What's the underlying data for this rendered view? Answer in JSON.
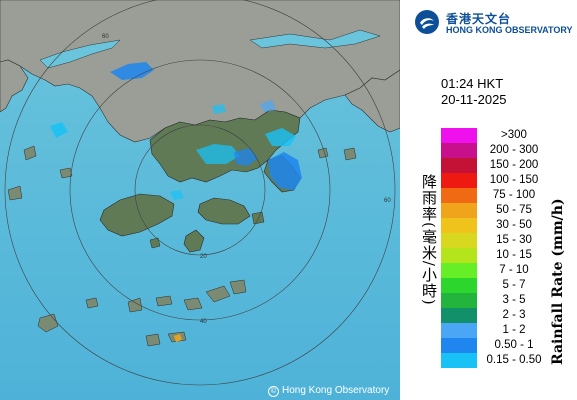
{
  "logo": {
    "name_cn": "香港天文台",
    "name_en": "HONG KONG OBSERVATORY"
  },
  "timestamp": {
    "time": "01:24 HKT",
    "date": "20-11-2025"
  },
  "map": {
    "credit": "Hong Kong Observatory",
    "range_ring_labels": [
      "20",
      "40",
      "60"
    ],
    "colors": {
      "sea": "#5ab8d8",
      "land": "#5f7a55",
      "mainland": "#9a9e96",
      "range_ring": "#404040"
    }
  },
  "legend": {
    "title_cn": "降雨率(毫米/小時)",
    "title_en": "Rainfall Rate (mm/h)",
    "items": [
      {
        "label": ">300",
        "color": "#ee11ee"
      },
      {
        "label": "200 - 300",
        "color": "#c8108c"
      },
      {
        "label": "150 - 200",
        "color": "#c41236"
      },
      {
        "label": "100 - 150",
        "color": "#ee1a12"
      },
      {
        "label": "75 - 100",
        "color": "#ef6a12"
      },
      {
        "label": "50 - 75",
        "color": "#efa41c"
      },
      {
        "label": "30 - 50",
        "color": "#f0c21c"
      },
      {
        "label": "15 - 30",
        "color": "#d8d820"
      },
      {
        "label": "10 - 15",
        "color": "#b4e41c"
      },
      {
        "label": "7 - 10",
        "color": "#66ee26"
      },
      {
        "label": "5 - 7",
        "color": "#2cd62c"
      },
      {
        "label": "3 - 5",
        "color": "#22b43c"
      },
      {
        "label": "2 - 3",
        "color": "#12906a"
      },
      {
        "label": "1 - 2",
        "color": "#4ca6f6"
      },
      {
        "label": "0.50 - 1",
        "color": "#1e86ee"
      },
      {
        "label": "0.15 - 0.50",
        "color": "#18c2f6"
      }
    ]
  }
}
